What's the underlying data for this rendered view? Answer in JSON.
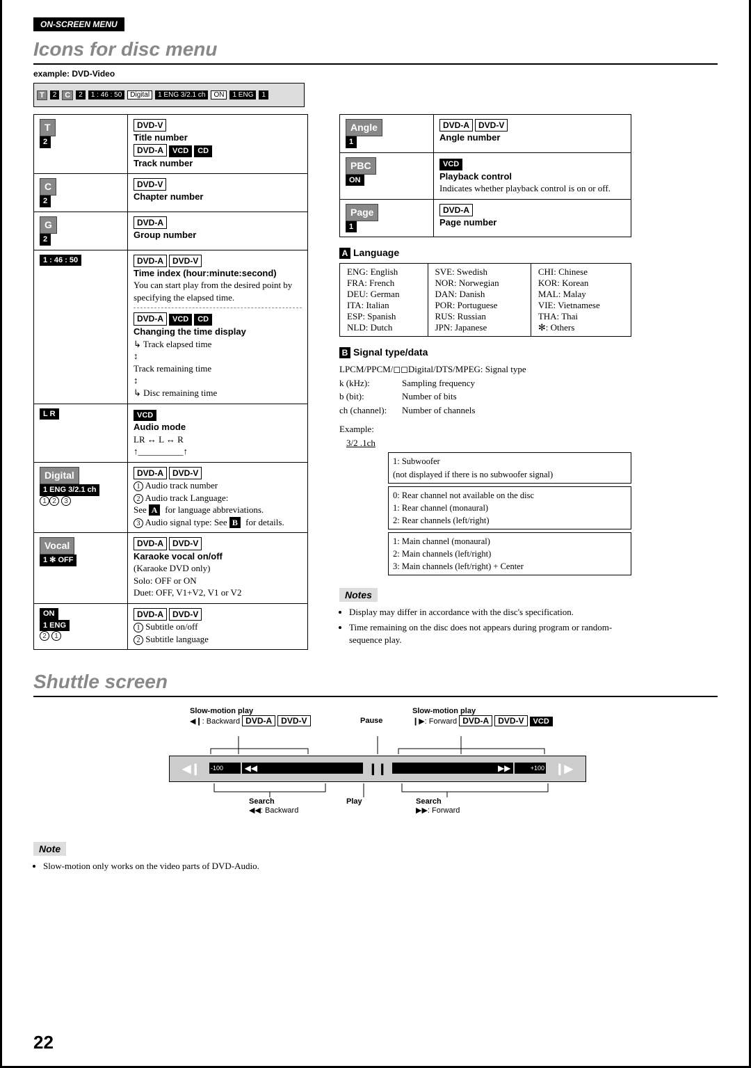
{
  "header_badge": "ON-SCREEN MENU",
  "title1": "Icons for disc menu",
  "example_label": "example: DVD-Video",
  "top_strip": {
    "t": "T",
    "t_num": "2",
    "c": "C",
    "c_num": "2",
    "time": "1 : 46 : 50",
    "digital": "Digital",
    "audio": "1 ENG 3/2.1 ch",
    "on": "ON",
    "sub": "1 ENG",
    "angle": "1"
  },
  "badges": {
    "dvdv": "DVD-V",
    "dvda": "DVD-A",
    "vcd": "VCD",
    "cd": "CD"
  },
  "rows_left": [
    {
      "icon": "T / 2",
      "lines": [
        "<DVDV>",
        "<B>Title number</B>",
        "<DVDA><VCD><CD>",
        "<B>Track number</B>"
      ]
    },
    {
      "icon": "C / 2",
      "lines": [
        "<DVDV>",
        "<B>Chapter number</B>"
      ]
    },
    {
      "icon": "G / 2",
      "lines": [
        "<DVDA>",
        "<B>Group number</B>"
      ]
    },
    {
      "icon": "1 : 46 : 50",
      "lines": [
        "<DVDA><DVDV>",
        "<B>Time index (hour:minute:second)</B>",
        "You can start play from the desired point by specifying the elapsed time.",
        "<HR>",
        "<DVDA><VCD><CD>",
        "<B>Changing the time display</B>",
        "↳ Track elapsed time",
        "   ↕",
        "   Track remaining time",
        "   ↕",
        "↳ Disc remaining time"
      ]
    },
    {
      "icon": "L R",
      "lines": [
        "<VCD>",
        "<B>Audio mode</B>",
        "LR ↔ L ↔ R",
        "  ↑__________↑"
      ]
    },
    {
      "icon": "Digital / 1 ENG 3/2.1 ch / ①② ③",
      "lines": [
        "<DVDA><DVDV>",
        "① Audio track number",
        "② Audio track Language:",
        "    See <SA> for language abbreviations.",
        "③ Audio signal type: See <SB> for details."
      ]
    },
    {
      "icon": "Vocal / 1 ✻ OFF",
      "lines": [
        "<DVDA><DVDV>",
        "<B>Karaoke vocal on/off</B>",
        "(Karaoke DVD only)",
        "Solo: OFF or ON",
        "Duet: OFF, V1+V2, V1 or V2"
      ]
    },
    {
      "icon": "ON / 1 ENG / ② ①",
      "lines": [
        "<DVDA><DVDV>",
        "① Subtitle on/off",
        "② Subtitle language"
      ]
    }
  ],
  "rows_right": [
    {
      "icon": "Angle / 1",
      "lines": [
        "<DVDA><DVDV>",
        "<B>Angle number</B>"
      ]
    },
    {
      "icon": "PBC / ON",
      "lines": [
        "<VCD>",
        "<B>Playback control</B>",
        "Indicates whether playback control is on or off."
      ]
    },
    {
      "icon": "Page / 1",
      "lines": [
        "<DVDA>",
        "<B>Page number</B>"
      ]
    }
  ],
  "lang_heading": "Language",
  "lang_table": [
    [
      "ENG: English",
      "SVE: Swedish",
      "CHI: Chinese"
    ],
    [
      "FRA: French",
      "NOR: Norwegian",
      "KOR: Korean"
    ],
    [
      "DEU: German",
      "DAN: Danish",
      "MAL: Malay"
    ],
    [
      "ITA: Italian",
      "POR: Portuguese",
      "VIE: Vietnamese"
    ],
    [
      "ESP: Spanish",
      "RUS: Russian",
      "THA: Thai"
    ],
    [
      "NLD: Dutch",
      "JPN: Japanese",
      "✻:    Others"
    ]
  ],
  "signal_heading": "Signal type/data",
  "signal_line1": "LPCM/PPCM/◻◻Digital/DTS/MPEG: Signal type",
  "signal_grid": [
    [
      "k (kHz):",
      "Sampling frequency"
    ],
    [
      "b (bit):",
      "Number of bits"
    ],
    [
      "ch (channel):",
      "Number of channels"
    ]
  ],
  "signal_example_label": "Example:",
  "signal_example_val": "3/2 .1ch",
  "ch_boxes": [
    [
      "1: Subwoofer",
      "   (not displayed if there is no subwoofer signal)"
    ],
    [
      "0: Rear channel not available on the disc",
      "1: Rear channel (monaural)",
      "2: Rear channels (left/right)"
    ],
    [
      "1: Main channel (monaural)",
      "2: Main channels (left/right)",
      "3: Main channels (left/right) + Center"
    ]
  ],
  "notes_heading": "Notes",
  "notes": [
    "Display may differ in accordance with the disc's specification.",
    "Time remaining on the disc does not appears during program or random-sequence play."
  ],
  "title2": "Shuttle screen",
  "shuttle": {
    "slow_bwd_title": "Slow-motion play",
    "slow_bwd_sub": "◀❙: Backward",
    "pause": "Pause",
    "slow_fwd_title": "Slow-motion play",
    "slow_fwd_sub": "❙▶: Forward",
    "search_bwd_title": "Search",
    "search_bwd_sub": "◀◀: Backward",
    "play": "Play",
    "search_fwd_title": "Search",
    "search_fwd_sub": "▶▶: Forward",
    "minus100": "-100",
    "plus100": "+100"
  },
  "note_heading": "Note",
  "note_bottom": "Slow-motion only works on the video parts of DVD-Audio.",
  "page_num": "22"
}
